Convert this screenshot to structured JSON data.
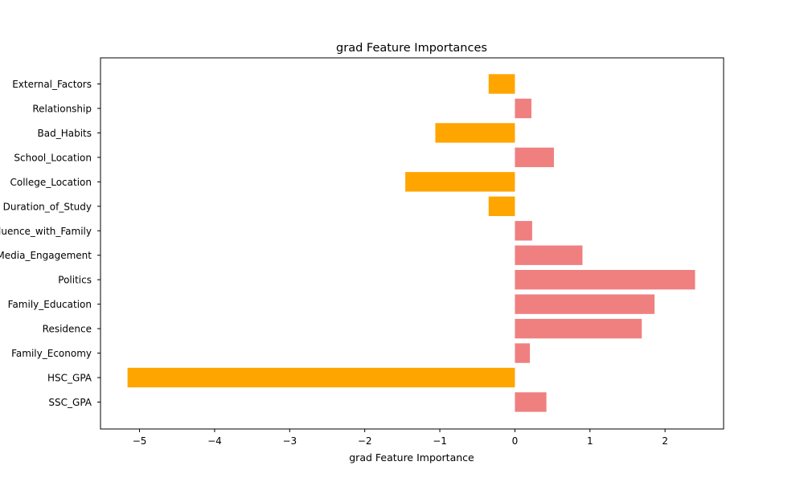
{
  "chart_data": {
    "type": "bar",
    "orientation": "horizontal",
    "title": "grad Feature Importances",
    "xlabel": "grad Feature Importance",
    "ylabel": "",
    "xlim": [
      -5.52,
      2.78
    ],
    "xticks": [
      -5,
      -4,
      -3,
      -2,
      -1,
      0,
      1,
      2
    ],
    "xtick_labels": [
      "−5",
      "−4",
      "−3",
      "−2",
      "−1",
      "0",
      "1",
      "2"
    ],
    "grid": false,
    "legend": "none",
    "colors": {
      "positive": "#f08080",
      "negative": "#ffa500"
    },
    "categories": [
      "SSC_GPA",
      "HSC_GPA",
      "Family_Economy",
      "Residence",
      "Family_Education",
      "Politics",
      "Social_Media_Engagement",
      "Social_Influence_with_Family",
      "Duration_of_Study",
      "College_Location",
      "School_Location",
      "Bad_Habits",
      "Relationship",
      "External_Factors"
    ],
    "values": [
      0.42,
      -5.16,
      0.2,
      1.69,
      1.86,
      2.4,
      0.9,
      0.23,
      -0.35,
      -1.46,
      0.52,
      -1.06,
      0.22,
      -0.35
    ]
  }
}
